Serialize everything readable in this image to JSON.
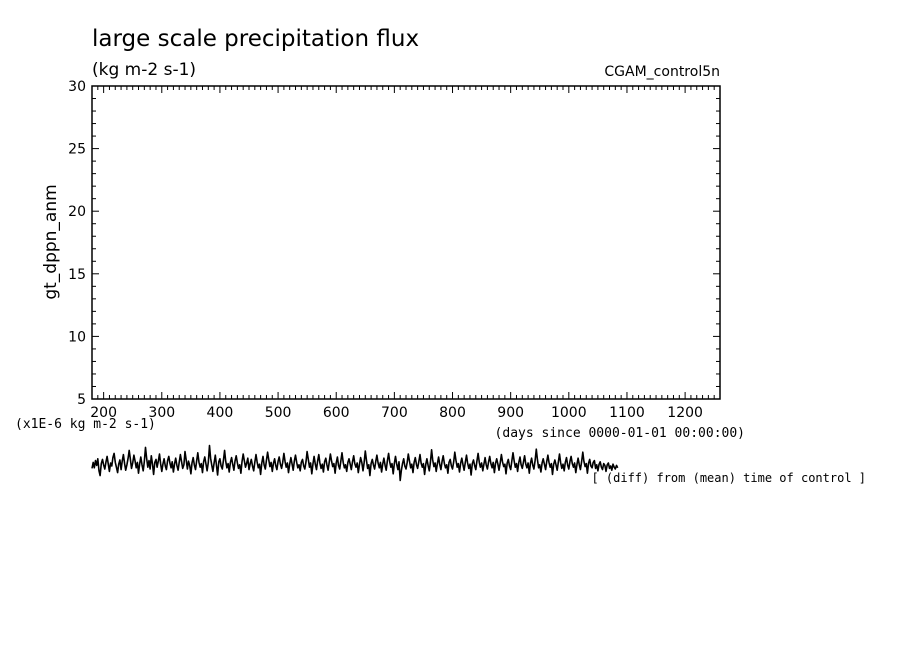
{
  "chart_data": {
    "type": "line",
    "title": "large scale precipitation flux",
    "subtitle": "(kg m-2 s-1)",
    "run_label": "CGAM_control5n",
    "ylabel": "gt_dppn_anm",
    "xlabel": "(days since 0000-01-01 00:00:00)",
    "y_unit_note": "(x1E-6 kg m-2 s-1)",
    "footnote": "[ (diff) from (mean) time of control ]",
    "xlim": [
      180,
      1260
    ],
    "ylim": [
      5,
      30
    ],
    "x_ticks": [
      200,
      300,
      400,
      500,
      600,
      700,
      800,
      900,
      1000,
      1100,
      1200
    ],
    "y_ticks": [
      5,
      10,
      15,
      20,
      25,
      30
    ],
    "grid": false,
    "line_color": "#000000",
    "series": [
      {
        "x_start": 180,
        "x_step": 2,
        "values": [
          -0.4,
          0.6,
          -0.3,
          0.9,
          0.1,
          1.2,
          -0.8,
          -1.6,
          0.4,
          1.1,
          0.2,
          -0.5,
          0.7,
          1.6,
          0.3,
          -0.9,
          0.5,
          0.0,
          1.4,
          2.1,
          0.6,
          -0.2,
          -1.1,
          0.3,
          1.0,
          -0.6,
          0.8,
          1.9,
          0.4,
          -0.7,
          0.2,
          1.3,
          2.6,
          1.1,
          -0.4,
          0.5,
          1.8,
          0.9,
          -0.3,
          0.6,
          -1.2,
          0.4,
          1.5,
          0.2,
          -0.8,
          0.7,
          3.1,
          1.2,
          -0.2,
          0.9,
          -0.5,
          1.7,
          0.3,
          -1.4,
          0.6,
          1.1,
          -0.2,
          0.8,
          2.0,
          0.4,
          -0.9,
          0.3,
          1.2,
          0.0,
          -0.6,
          0.9,
          1.6,
          0.5,
          -0.3,
          0.7,
          -1.0,
          0.4,
          1.3,
          0.1,
          -0.7,
          0.6,
          1.9,
          0.8,
          -0.4,
          0.2,
          2.4,
          1.0,
          -0.5,
          0.8,
          0.1,
          -1.3,
          0.5,
          1.4,
          0.2,
          -0.6,
          0.9,
          2.2,
          0.6,
          -0.2,
          0.4,
          -1.1,
          0.7,
          1.5,
          0.3,
          -0.8,
          0.6,
          3.4,
          1.3,
          0.1,
          -0.9,
          0.5,
          1.8,
          0.2,
          -1.5,
          0.7,
          1.2,
          0.0,
          -0.5,
          0.9,
          2.6,
          0.8,
          -0.3,
          0.4,
          -1.0,
          0.6,
          1.4,
          0.3,
          -0.7,
          0.8,
          1.7,
          0.5,
          -0.4,
          0.2,
          -1.2,
          0.7,
          2.0,
          0.9,
          -0.2,
          0.5,
          1.3,
          -0.6,
          0.4,
          1.1,
          0.0,
          -0.8,
          0.6,
          1.9,
          0.7,
          -0.3,
          0.3,
          -1.4,
          0.5,
          1.6,
          0.2,
          -0.5,
          0.9,
          2.3,
          1.0,
          -0.1,
          0.6,
          -0.9,
          0.4,
          1.2,
          0.1,
          -0.6,
          0.8,
          1.5,
          0.3,
          -0.4,
          0.6,
          2.1,
          0.7,
          -0.2,
          0.5,
          -1.1,
          0.3,
          1.4,
          0.4,
          -0.7,
          0.9,
          1.8,
          0.6,
          -0.3,
          0.2,
          -0.8,
          0.6,
          1.1,
          0.0,
          -0.5,
          0.7,
          2.4,
          1.1,
          -0.2,
          0.5,
          -1.3,
          0.4,
          1.6,
          0.3,
          -0.6,
          0.8,
          1.9,
          0.5,
          -0.4,
          0.3,
          -1.0,
          0.7,
          1.3,
          0.2,
          -0.7,
          0.6,
          2.0,
          0.8,
          -0.1,
          0.4,
          -1.2,
          0.5,
          1.5,
          0.1,
          -0.5,
          0.9,
          2.2,
          0.6,
          -0.3,
          0.2,
          -0.9,
          0.6,
          1.2,
          0.3,
          -0.6,
          0.7,
          1.7,
          0.4,
          -0.2,
          0.5,
          -1.1,
          0.3,
          1.4,
          0.6,
          -0.8,
          0.5,
          2.5,
          0.9,
          -0.4,
          0.2,
          -1.6,
          0.4,
          1.1,
          0.2,
          -0.5,
          0.8,
          1.8,
          0.5,
          -0.3,
          0.6,
          -1.0,
          0.3,
          1.3,
          0.1,
          -0.7,
          0.9,
          2.1,
          0.7,
          -0.2,
          0.4,
          -1.3,
          0.5,
          1.6,
          0.3,
          -0.6,
          0.7,
          -2.4,
          -0.8,
          0.4,
          1.2,
          0.0,
          -0.5,
          0.6,
          2.0,
          0.8,
          -0.3,
          0.3,
          -1.1,
          0.6,
          1.4,
          0.2,
          -0.4,
          0.7,
          1.9,
          0.5,
          -0.2,
          0.4,
          -1.4,
          0.3,
          1.2,
          0.1,
          -0.8,
          0.6,
          2.7,
          1.0,
          -0.1,
          0.5,
          -0.9,
          0.4,
          1.5,
          0.3,
          -0.6,
          0.8,
          1.7,
          0.4,
          -0.3,
          0.2,
          -1.2,
          0.6,
          1.1,
          0.0,
          -0.5,
          0.7,
          2.3,
          0.9,
          -0.2,
          0.4,
          -1.0,
          0.5,
          1.3,
          0.2,
          -0.7,
          0.6,
          1.8,
          0.5,
          -0.4,
          0.3,
          -1.5,
          0.4,
          1.0,
          0.1,
          -0.6,
          0.8,
          2.1,
          0.6,
          -0.2,
          0.5,
          -0.8,
          0.3,
          1.4,
          0.2,
          -0.5,
          0.7,
          1.6,
          0.4,
          -0.3,
          0.6,
          -1.1,
          0.4,
          1.2,
          0.3,
          -0.7,
          0.5,
          1.9,
          0.7,
          -0.1,
          0.3,
          -1.3,
          0.5,
          1.1,
          0.0,
          -0.6,
          0.8,
          2.2,
          0.8,
          -0.2,
          0.4,
          -0.9,
          0.6,
          1.5,
          0.2,
          -0.4,
          0.7,
          1.7,
          0.3,
          -0.3,
          0.5,
          -1.2,
          0.4,
          1.3,
          0.1,
          -0.5,
          0.9,
          2.8,
          1.1,
          -0.3,
          0.2,
          -1.0,
          0.5,
          1.2,
          0.3,
          -0.6,
          0.7,
          1.8,
          0.6,
          -0.2,
          0.4,
          -1.4,
          0.3,
          1.0,
          0.2,
          -0.7,
          0.6,
          2.0,
          0.5,
          -0.4,
          0.3,
          -0.8,
          0.6,
          1.4,
          0.1,
          -0.5,
          0.8,
          1.6,
          0.4,
          -0.2,
          0.5,
          -1.1,
          0.3,
          1.3,
          0.2,
          -0.6,
          0.7,
          2.3,
          0.8,
          -0.1,
          0.4,
          -1.2,
          0.5,
          1.1,
          0.0,
          -0.3,
          0.6,
          0.9,
          -0.4,
          0.2,
          -0.8,
          0.3,
          0.7,
          -0.2,
          -0.6,
          0.4,
          0.1,
          -0.9,
          0.2,
          0.5,
          -0.4,
          0.0,
          -0.7,
          0.3,
          -0.2,
          -0.5,
          0.1,
          -0.3
        ]
      }
    ]
  }
}
